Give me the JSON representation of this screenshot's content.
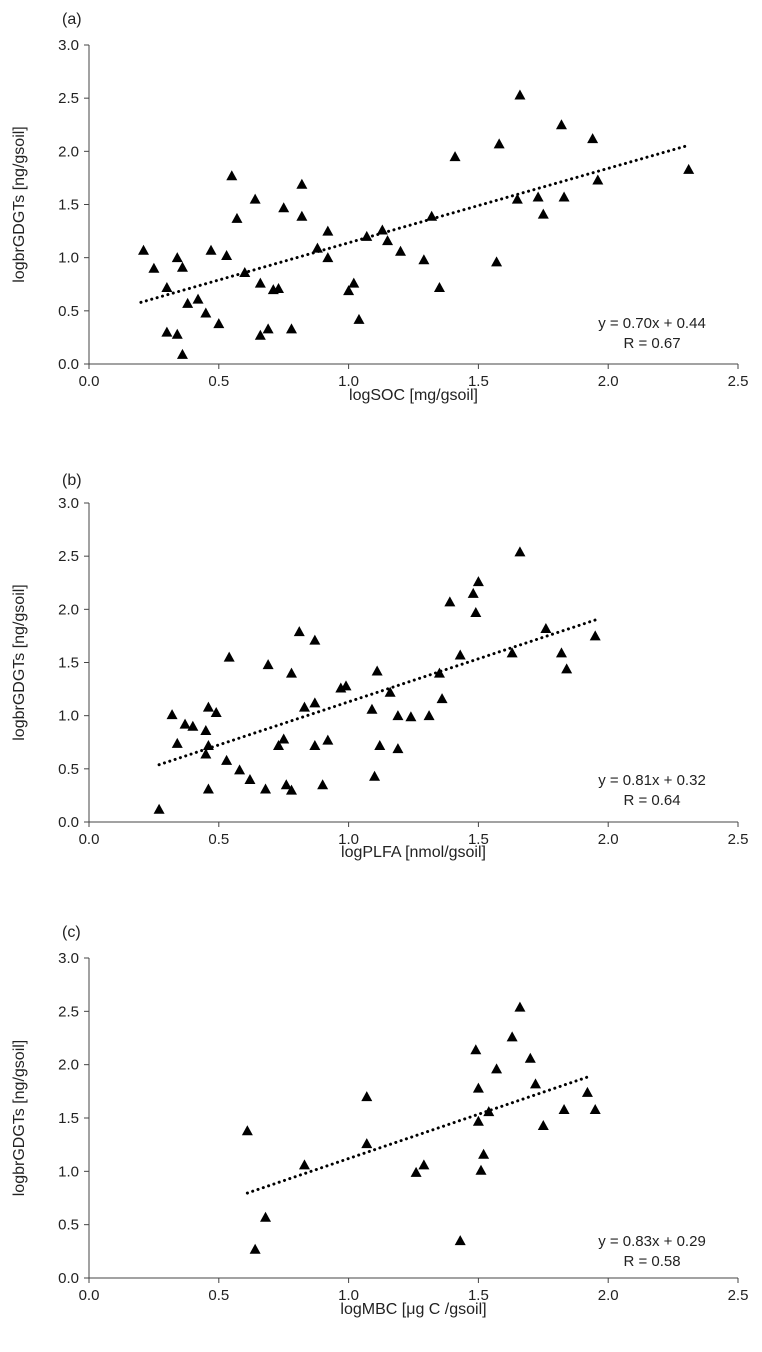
{
  "chart_data": [
    {
      "type": "scatter",
      "panel_label": "(a)",
      "xlabel": "logSOC [mg/gsoil]",
      "ylabel": "logbrGDGTs [ng/gsoil]",
      "xlim": [
        0,
        2.5
      ],
      "ylim": [
        0,
        3
      ],
      "xticks": [
        "0.0",
        "0.5",
        "1.0",
        "1.5",
        "2.0",
        "2.5"
      ],
      "yticks": [
        "0.0",
        "0.5",
        "1.0",
        "1.5",
        "2.0",
        "2.5",
        "3.0"
      ],
      "grid": false,
      "marker": "triangle",
      "color": "#000000",
      "trendline": {
        "slope": 0.7,
        "intercept": 0.44,
        "x_range": [
          0.2,
          2.31
        ],
        "style": "dotted"
      },
      "equation": "y = 0.70x + 0.44",
      "r_label": "R = 0.67",
      "points": [
        [
          0.21,
          1.07
        ],
        [
          0.25,
          0.9
        ],
        [
          0.3,
          0.72
        ],
        [
          0.3,
          0.3
        ],
        [
          0.34,
          1.0
        ],
        [
          0.34,
          0.28
        ],
        [
          0.36,
          0.91
        ],
        [
          0.36,
          0.09
        ],
        [
          0.38,
          0.57
        ],
        [
          0.42,
          0.61
        ],
        [
          0.45,
          0.48
        ],
        [
          0.47,
          1.07
        ],
        [
          0.5,
          0.38
        ],
        [
          0.53,
          1.02
        ],
        [
          0.55,
          1.77
        ],
        [
          0.57,
          1.37
        ],
        [
          0.6,
          0.86
        ],
        [
          0.64,
          1.55
        ],
        [
          0.66,
          0.76
        ],
        [
          0.66,
          0.27
        ],
        [
          0.69,
          0.33
        ],
        [
          0.71,
          0.7
        ],
        [
          0.73,
          0.71
        ],
        [
          0.75,
          1.47
        ],
        [
          0.78,
          0.33
        ],
        [
          0.82,
          1.69
        ],
        [
          0.82,
          1.39
        ],
        [
          0.88,
          1.09
        ],
        [
          0.92,
          1.25
        ],
        [
          0.92,
          1.0
        ],
        [
          1.0,
          0.69
        ],
        [
          1.02,
          0.76
        ],
        [
          1.04,
          0.42
        ],
        [
          1.07,
          1.2
        ],
        [
          1.13,
          1.26
        ],
        [
          1.15,
          1.16
        ],
        [
          1.2,
          1.06
        ],
        [
          1.29,
          0.98
        ],
        [
          1.32,
          1.39
        ],
        [
          1.35,
          0.72
        ],
        [
          1.41,
          1.95
        ],
        [
          1.57,
          0.96
        ],
        [
          1.58,
          2.07
        ],
        [
          1.65,
          1.55
        ],
        [
          1.66,
          2.53
        ],
        [
          1.73,
          1.57
        ],
        [
          1.75,
          1.41
        ],
        [
          1.82,
          2.25
        ],
        [
          1.83,
          1.57
        ],
        [
          1.94,
          2.12
        ],
        [
          1.96,
          1.73
        ],
        [
          2.31,
          1.83
        ]
      ]
    },
    {
      "type": "scatter",
      "panel_label": "(b)",
      "xlabel": "logPLFA [nmol/gsoil]",
      "ylabel": "logbrGDGTs [ng/gsoil]",
      "xlim": [
        0,
        2.5
      ],
      "ylim": [
        0,
        3
      ],
      "xticks": [
        "0.0",
        "0.5",
        "1.0",
        "1.5",
        "2.0",
        "2.5"
      ],
      "yticks": [
        "0.0",
        "0.5",
        "1.0",
        "1.5",
        "2.0",
        "2.5",
        "3.0"
      ],
      "grid": false,
      "marker": "triangle",
      "color": "#000000",
      "trendline": {
        "slope": 0.81,
        "intercept": 0.32,
        "x_range": [
          0.27,
          1.95
        ],
        "style": "dotted"
      },
      "equation": "y = 0.81x + 0.32",
      "r_label": "R = 0.64",
      "points": [
        [
          0.27,
          0.12
        ],
        [
          0.32,
          1.01
        ],
        [
          0.34,
          0.74
        ],
        [
          0.37,
          0.92
        ],
        [
          0.4,
          0.9
        ],
        [
          0.45,
          0.86
        ],
        [
          0.45,
          0.64
        ],
        [
          0.46,
          1.08
        ],
        [
          0.46,
          0.72
        ],
        [
          0.46,
          0.31
        ],
        [
          0.49,
          1.03
        ],
        [
          0.53,
          0.58
        ],
        [
          0.54,
          1.55
        ],
        [
          0.58,
          0.49
        ],
        [
          0.62,
          0.4
        ],
        [
          0.68,
          0.31
        ],
        [
          0.69,
          1.48
        ],
        [
          0.73,
          0.72
        ],
        [
          0.75,
          0.78
        ],
        [
          0.76,
          0.35
        ],
        [
          0.78,
          1.4
        ],
        [
          0.78,
          0.3
        ],
        [
          0.81,
          1.79
        ],
        [
          0.83,
          1.08
        ],
        [
          0.87,
          1.71
        ],
        [
          0.87,
          1.12
        ],
        [
          0.87,
          0.72
        ],
        [
          0.9,
          0.35
        ],
        [
          0.92,
          0.77
        ],
        [
          0.97,
          1.26
        ],
        [
          0.99,
          1.28
        ],
        [
          1.09,
          1.06
        ],
        [
          1.1,
          0.43
        ],
        [
          1.11,
          1.42
        ],
        [
          1.12,
          0.72
        ],
        [
          1.16,
          1.22
        ],
        [
          1.19,
          1.0
        ],
        [
          1.19,
          0.69
        ],
        [
          1.24,
          0.99
        ],
        [
          1.31,
          1.0
        ],
        [
          1.35,
          1.4
        ],
        [
          1.36,
          1.16
        ],
        [
          1.39,
          2.07
        ],
        [
          1.43,
          1.57
        ],
        [
          1.48,
          2.15
        ],
        [
          1.49,
          1.97
        ],
        [
          1.5,
          2.26
        ],
        [
          1.63,
          1.59
        ],
        [
          1.66,
          2.54
        ],
        [
          1.76,
          1.82
        ],
        [
          1.82,
          1.59
        ],
        [
          1.84,
          1.44
        ],
        [
          1.95,
          1.75
        ]
      ]
    },
    {
      "type": "scatter",
      "panel_label": "(c)",
      "xlabel": "logMBC [μg C /gsoil]",
      "ylabel": "logbrGDGTs [ng/gsoil]",
      "xlim": [
        0,
        2.5
      ],
      "ylim": [
        0,
        3
      ],
      "xticks": [
        "0.0",
        "0.5",
        "1.0",
        "1.5",
        "2.0",
        "2.5"
      ],
      "yticks": [
        "0.0",
        "0.5",
        "1.0",
        "1.5",
        "2.0",
        "2.5",
        "3.0"
      ],
      "grid": false,
      "marker": "triangle",
      "color": "#000000",
      "trendline": {
        "slope": 0.83,
        "intercept": 0.29,
        "x_range": [
          0.61,
          1.93
        ],
        "style": "dotted"
      },
      "equation": "y = 0.83x + 0.29",
      "r_label": "R = 0.58",
      "points": [
        [
          0.61,
          1.38
        ],
        [
          0.64,
          0.27
        ],
        [
          0.68,
          0.57
        ],
        [
          0.83,
          1.06
        ],
        [
          1.07,
          1.7
        ],
        [
          1.07,
          1.26
        ],
        [
          1.26,
          0.99
        ],
        [
          1.29,
          1.06
        ],
        [
          1.43,
          0.35
        ],
        [
          1.49,
          2.14
        ],
        [
          1.5,
          1.78
        ],
        [
          1.5,
          1.47
        ],
        [
          1.51,
          1.01
        ],
        [
          1.52,
          1.16
        ],
        [
          1.54,
          1.56
        ],
        [
          1.57,
          1.96
        ],
        [
          1.63,
          2.26
        ],
        [
          1.66,
          2.54
        ],
        [
          1.7,
          2.06
        ],
        [
          1.72,
          1.82
        ],
        [
          1.75,
          1.43
        ],
        [
          1.83,
          1.58
        ],
        [
          1.92,
          1.74
        ],
        [
          1.95,
          1.58
        ]
      ]
    }
  ]
}
